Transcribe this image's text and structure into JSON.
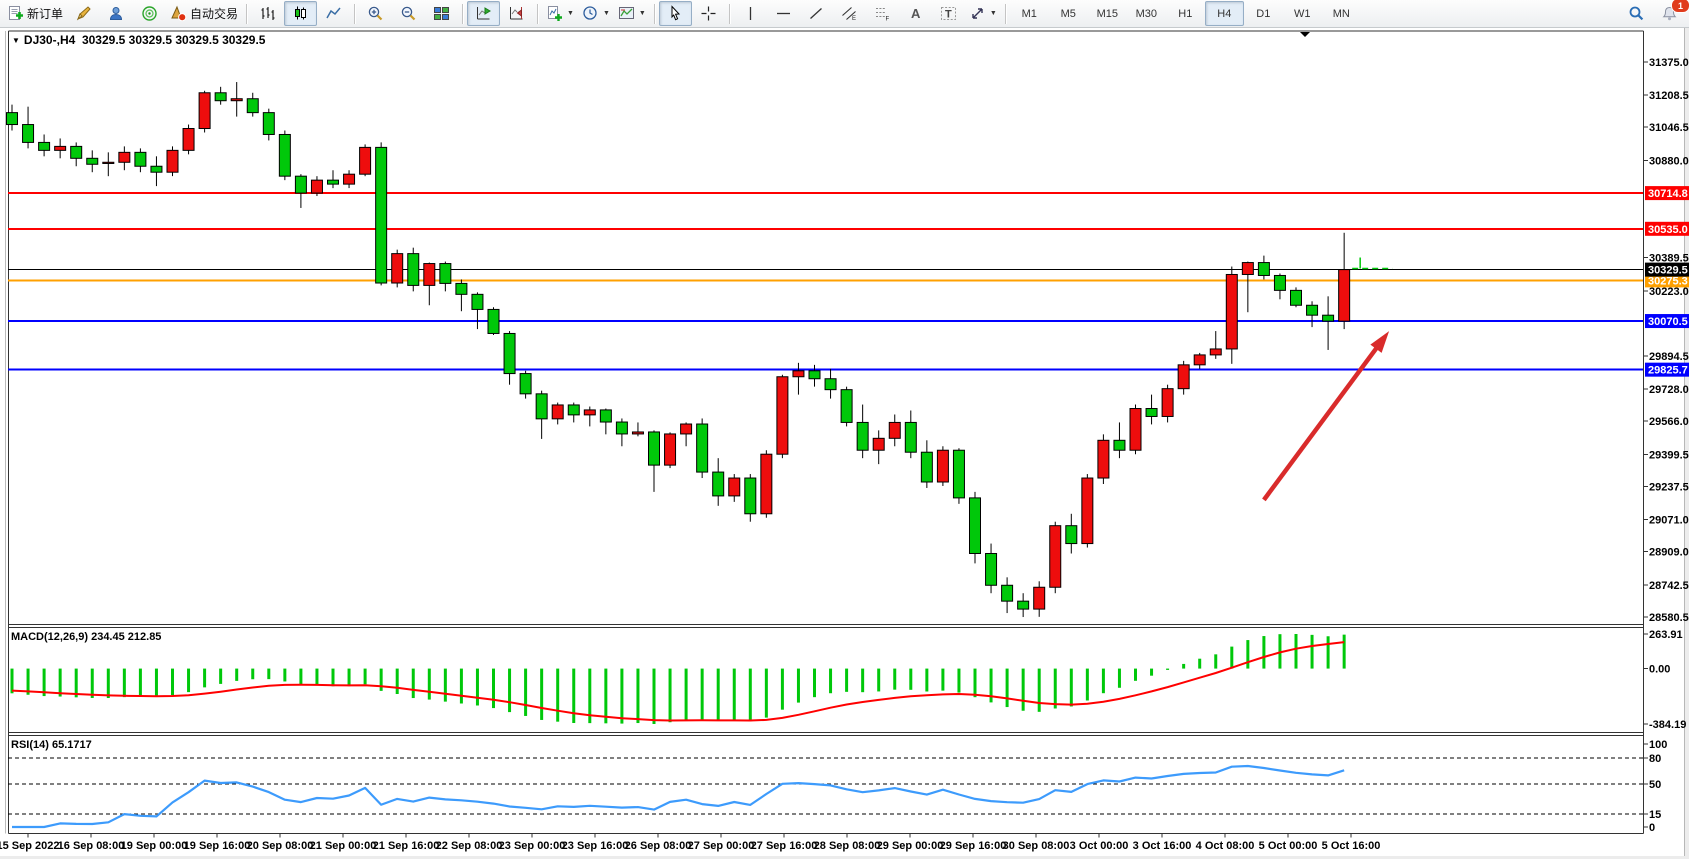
{
  "toolbar": {
    "new_order_label": "新订单",
    "auto_trading_label": "自动交易",
    "timeframes": [
      "M1",
      "M5",
      "M15",
      "M30",
      "H1",
      "H4",
      "D1",
      "W1",
      "MN"
    ],
    "active_timeframe": "H4",
    "notification_count": "1",
    "tools": {
      "channel_letter": "E",
      "fibo_letter": "F",
      "text_letter": "A",
      "label_letter": "T"
    }
  },
  "chart": {
    "title": "DJ30-,H4",
    "ohlc_text": "30329.5 30329.5 30329.5 30329.5",
    "dropdown_marker": "▼"
  },
  "chart_data": {
    "type": "candlestick",
    "symbol": "DJ30-",
    "timeframe": "H4",
    "current_price": 30329.5,
    "colors": {
      "up": "#ee0d0d",
      "down": "#00c80a",
      "wick": "#000000",
      "line_red": "#ff0000",
      "line_orange": "#ffa000",
      "line_blue": "#0000ff",
      "current_line": "#000000",
      "arrow": "#d92b2b",
      "macd_hist": "#00c80a",
      "macd_signal": "#ff0000",
      "rsi_line": "#3d9bfc",
      "ask_marker": "#00c80a"
    },
    "y_ticks": [
      31375.0,
      31208.5,
      31046.5,
      30880.0,
      30389.5,
      30223.0,
      29894.5,
      29728.0,
      29566.0,
      29399.5,
      29237.5,
      29071.0,
      28909.0,
      28742.5,
      28580.5
    ],
    "price_lines": [
      {
        "price": 30714.8,
        "color": "#ff0000",
        "width": 2,
        "label": "30714.8"
      },
      {
        "price": 30535.0,
        "color": "#ff0000",
        "width": 2,
        "label": "30535.0"
      },
      {
        "price": 30275.3,
        "color": "#ffa000",
        "width": 2,
        "label": "30275.3"
      },
      {
        "price": 30070.5,
        "color": "#0000ff",
        "width": 2,
        "label": "30070.5"
      },
      {
        "price": 29825.7,
        "color": "#0000ff",
        "width": 2,
        "label": "29825.7"
      }
    ],
    "current_price_line": {
      "price": 30329.5,
      "color": "#000000",
      "label": "30329.5"
    },
    "ask_marker": {
      "price": 30335,
      "from_bar": 83.5,
      "to_bar": 86.0
    },
    "annotation_arrow": {
      "from_bar": 78.0,
      "from_price": 29170,
      "to_bar": 85.8,
      "to_price": 30020
    },
    "x_labels": [
      "15 Sep 2022",
      "16 Sep 08:00",
      "19 Sep 00:00",
      "19 Sep 16:00",
      "20 Sep 08:00",
      "21 Sep 00:00",
      "21 Sep 16:00",
      "22 Sep 08:00",
      "23 Sep 00:00",
      "23 Sep 16:00",
      "26 Sep 08:00",
      "27 Sep 00:00",
      "27 Sep 16:00",
      "28 Sep 08:00",
      "29 Sep 00:00",
      "29 Sep 16:00",
      "30 Sep 08:00",
      "3 Oct 00:00",
      "3 Oct 16:00",
      "4 Oct 08:00",
      "5 Oct 00:00",
      "5 Oct 16:00"
    ],
    "candles": [
      [
        31120,
        31160,
        31030,
        31060
      ],
      [
        31060,
        31150,
        30940,
        30970
      ],
      [
        30970,
        31010,
        30900,
        30930
      ],
      [
        30930,
        30990,
        30890,
        30950
      ],
      [
        30950,
        30970,
        30850,
        30890
      ],
      [
        30890,
        30930,
        30820,
        30860
      ],
      [
        30865,
        30920,
        30800,
        30870
      ],
      [
        30870,
        30950,
        30830,
        30920
      ],
      [
        30920,
        30940,
        30820,
        30850
      ],
      [
        30850,
        30900,
        30750,
        30820
      ],
      [
        30820,
        30950,
        30800,
        30930
      ],
      [
        30930,
        31060,
        30910,
        31040
      ],
      [
        31040,
        31230,
        31020,
        31220
      ],
      [
        31220,
        31250,
        31160,
        31180
      ],
      [
        31180,
        31274,
        31100,
        31190
      ],
      [
        31190,
        31220,
        31100,
        31120
      ],
      [
        31120,
        31140,
        30980,
        31010
      ],
      [
        31010,
        31030,
        30780,
        30800
      ],
      [
        30800,
        30810,
        30640,
        30715
      ],
      [
        30715,
        30800,
        30700,
        30780
      ],
      [
        30780,
        30830,
        30740,
        30760
      ],
      [
        30760,
        30830,
        30740,
        30810
      ],
      [
        30810,
        30960,
        30800,
        30945
      ],
      [
        30945,
        30970,
        30250,
        30262
      ],
      [
        30262,
        30430,
        30240,
        30410
      ],
      [
        30410,
        30440,
        30220,
        30250
      ],
      [
        30250,
        30365,
        30150,
        30360
      ],
      [
        30360,
        30370,
        30220,
        30260
      ],
      [
        30260,
        30280,
        30120,
        30205
      ],
      [
        30205,
        30215,
        30030,
        30129
      ],
      [
        30129,
        30140,
        30000,
        30008
      ],
      [
        30008,
        30020,
        29750,
        29806
      ],
      [
        29806,
        29820,
        29680,
        29704
      ],
      [
        29704,
        29720,
        29477,
        29578
      ],
      [
        29578,
        29660,
        29550,
        29648
      ],
      [
        29648,
        29660,
        29560,
        29598
      ],
      [
        29598,
        29640,
        29540,
        29623
      ],
      [
        29623,
        29630,
        29500,
        29562
      ],
      [
        29562,
        29580,
        29440,
        29502
      ],
      [
        29502,
        29560,
        29490,
        29512
      ],
      [
        29512,
        29520,
        29210,
        29345
      ],
      [
        29345,
        29510,
        29330,
        29502
      ],
      [
        29502,
        29560,
        29440,
        29552
      ],
      [
        29552,
        29580,
        29280,
        29310
      ],
      [
        29310,
        29380,
        29140,
        29190
      ],
      [
        29190,
        29300,
        29160,
        29280
      ],
      [
        29280,
        29300,
        29060,
        29100
      ],
      [
        29100,
        29420,
        29080,
        29400
      ],
      [
        29400,
        29800,
        29380,
        29790
      ],
      [
        29790,
        29860,
        29700,
        29820
      ],
      [
        29820,
        29850,
        29740,
        29780
      ],
      [
        29780,
        29830,
        29680,
        29725
      ],
      [
        29725,
        29740,
        29540,
        29560
      ],
      [
        29560,
        29650,
        29380,
        29420
      ],
      [
        29420,
        29520,
        29350,
        29480
      ],
      [
        29480,
        29600,
        29440,
        29560
      ],
      [
        29560,
        29620,
        29380,
        29410
      ],
      [
        29410,
        29470,
        29230,
        29260
      ],
      [
        29260,
        29440,
        29240,
        29420
      ],
      [
        29420,
        29430,
        29150,
        29180
      ],
      [
        29180,
        29210,
        28850,
        28900
      ],
      [
        28900,
        28950,
        28700,
        28740
      ],
      [
        28740,
        28780,
        28600,
        28660
      ],
      [
        28660,
        28700,
        28580,
        28620
      ],
      [
        28620,
        28760,
        28581,
        28730
      ],
      [
        28730,
        29060,
        28700,
        29040
      ],
      [
        29040,
        29100,
        28900,
        28950
      ],
      [
        28950,
        29300,
        28930,
        29280
      ],
      [
        29280,
        29500,
        29250,
        29470
      ],
      [
        29470,
        29560,
        29380,
        29420
      ],
      [
        29420,
        29650,
        29400,
        29630
      ],
      [
        29630,
        29700,
        29550,
        29590
      ],
      [
        29590,
        29750,
        29560,
        29730
      ],
      [
        29730,
        29870,
        29700,
        29850
      ],
      [
        29850,
        29910,
        29830,
        29900
      ],
      [
        29900,
        30020,
        29880,
        29930
      ],
      [
        29930,
        30345,
        29855,
        30305
      ],
      [
        30305,
        30370,
        30115,
        30365
      ],
      [
        30365,
        30400,
        30280,
        30300
      ],
      [
        30300,
        30310,
        30180,
        30225
      ],
      [
        30225,
        30240,
        30140,
        30150
      ],
      [
        30150,
        30170,
        30040,
        30100
      ],
      [
        30100,
        30195,
        29925,
        30070
      ],
      [
        30070,
        30515,
        30030,
        30329.5
      ]
    ],
    "indicators": {
      "macd": {
        "label": "MACD(12,26,9) 234.45 212.85",
        "params": [
          12,
          26,
          9
        ],
        "value": 234.45,
        "signal_value": 212.85,
        "axis_labels": [
          "263.91",
          "0.00",
          "-384.19"
        ],
        "axis_max": 263.91,
        "axis_min": -384.19
      },
      "rsi": {
        "label": "RSI(14) 65.1717",
        "period": 14,
        "value": 65.1717,
        "levels": [
          80,
          50,
          15
        ],
        "axis_ticks": [
          "100",
          "80",
          "50",
          "15",
          "0"
        ]
      }
    }
  }
}
